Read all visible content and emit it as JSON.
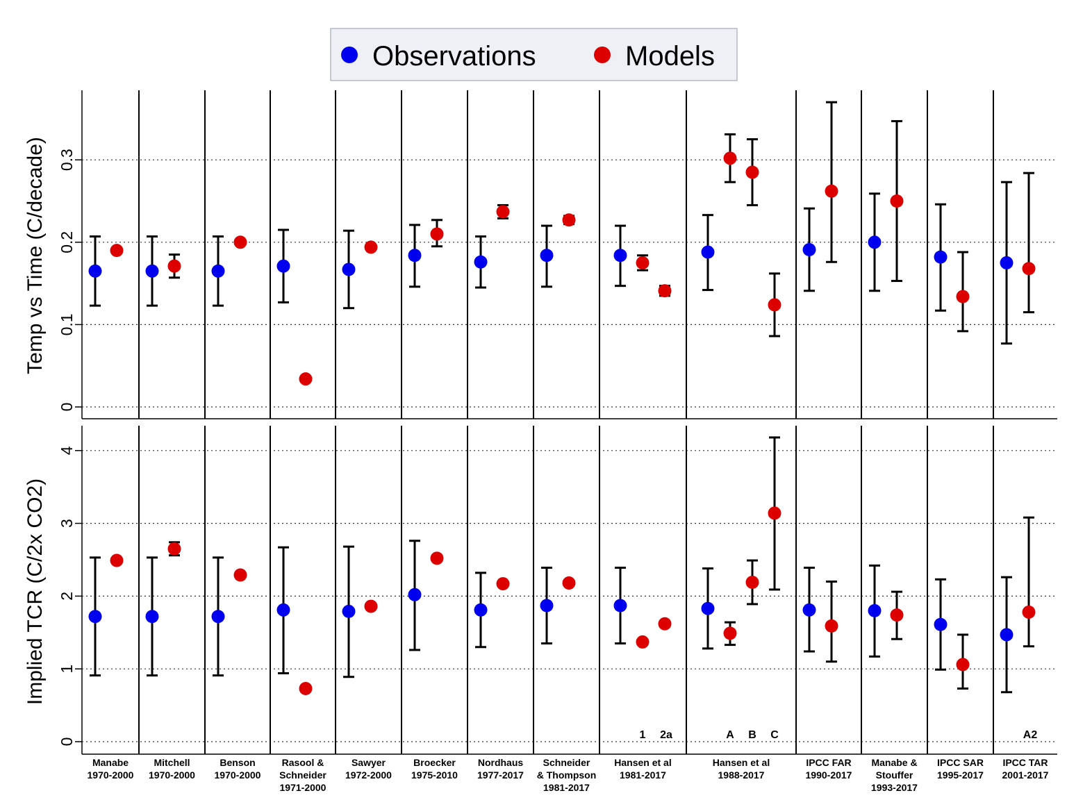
{
  "legend": [
    {
      "label": "Observations",
      "color": "#0000ee"
    },
    {
      "label": "Models",
      "color": "#dd0000"
    }
  ],
  "chart_data": [
    {
      "type": "scatter",
      "ylabel": "Temp vs Time (C/decade)",
      "ylim": [
        0,
        0.38
      ],
      "yticks": [
        0,
        0.1,
        0.2,
        0.3
      ],
      "ytick_labels": [
        "0",
        "0.1",
        "0.2",
        "0.3"
      ],
      "grid": "horizontal dotted",
      "categories": [
        "Manabe 1970-2000",
        "Mitchell 1970-2000",
        "Benson 1970-2000",
        "Rasool & Schneider 1971-2000",
        "Sawyer 1972-2000",
        "Broecker 1975-2010",
        "Nordhaus 1977-2017",
        "Schneider & Thompson 1981-2017",
        "Hansen et al 1981-2017",
        "Hansen et al 1988-2017",
        "IPCC FAR 1990-2017",
        "Manabe & Stouffer 1993-2017",
        "IPCC SAR 1995-2017",
        "IPCC TAR 2001-2017"
      ],
      "series": [
        {
          "name": "Observations",
          "color": "#0000ee",
          "points": [
            {
              "group": 0,
              "slot": 0,
              "y": 0.165,
              "lo": 0.123,
              "hi": 0.207
            },
            {
              "group": 1,
              "slot": 0,
              "y": 0.165,
              "lo": 0.123,
              "hi": 0.207
            },
            {
              "group": 2,
              "slot": 0,
              "y": 0.165,
              "lo": 0.123,
              "hi": 0.207
            },
            {
              "group": 3,
              "slot": 0,
              "y": 0.171,
              "lo": 0.127,
              "hi": 0.215
            },
            {
              "group": 4,
              "slot": 0,
              "y": 0.167,
              "lo": 0.12,
              "hi": 0.214
            },
            {
              "group": 5,
              "slot": 0,
              "y": 0.184,
              "lo": 0.146,
              "hi": 0.221
            },
            {
              "group": 6,
              "slot": 0,
              "y": 0.176,
              "lo": 0.145,
              "hi": 0.207
            },
            {
              "group": 7,
              "slot": 0,
              "y": 0.184,
              "lo": 0.146,
              "hi": 0.22
            },
            {
              "group": 8,
              "slot": 0,
              "y": 0.184,
              "lo": 0.147,
              "hi": 0.22
            },
            {
              "group": 9,
              "slot": 0,
              "y": 0.188,
              "lo": 0.142,
              "hi": 0.233
            },
            {
              "group": 10,
              "slot": 0,
              "y": 0.191,
              "lo": 0.141,
              "hi": 0.241
            },
            {
              "group": 11,
              "slot": 0,
              "y": 0.2,
              "lo": 0.141,
              "hi": 0.259
            },
            {
              "group": 12,
              "slot": 0,
              "y": 0.182,
              "lo": 0.117,
              "hi": 0.246
            },
            {
              "group": 13,
              "slot": 0,
              "y": 0.175,
              "lo": 0.077,
              "hi": 0.273
            }
          ]
        },
        {
          "name": "Models",
          "color": "#dd0000",
          "points": [
            {
              "group": 0,
              "slot": 1,
              "y": 0.19
            },
            {
              "group": 1,
              "slot": 1,
              "y": 0.171,
              "lo": 0.157,
              "hi": 0.185
            },
            {
              "group": 2,
              "slot": 1,
              "y": 0.2
            },
            {
              "group": 3,
              "slot": 1,
              "y": 0.034
            },
            {
              "group": 4,
              "slot": 1,
              "y": 0.194
            },
            {
              "group": 5,
              "slot": 1,
              "y": 0.21,
              "lo": 0.195,
              "hi": 0.227
            },
            {
              "group": 6,
              "slot": 1,
              "y": 0.237,
              "lo": 0.229,
              "hi": 0.245
            },
            {
              "group": 7,
              "slot": 1,
              "y": 0.227,
              "lo": 0.222,
              "hi": 0.232
            },
            {
              "group": 8,
              "slot": 1,
              "y": 0.175,
              "lo": 0.166,
              "hi": 0.184
            },
            {
              "group": 8,
              "slot": 2,
              "y": 0.141,
              "lo": 0.135,
              "hi": 0.147
            },
            {
              "group": 9,
              "slot": 1,
              "y": 0.302,
              "lo": 0.273,
              "hi": 0.331
            },
            {
              "group": 9,
              "slot": 2,
              "y": 0.285,
              "lo": 0.245,
              "hi": 0.325
            },
            {
              "group": 9,
              "slot": 3,
              "y": 0.124,
              "lo": 0.086,
              "hi": 0.162
            },
            {
              "group": 10,
              "slot": 1,
              "y": 0.262,
              "lo": 0.176,
              "hi": 0.37
            },
            {
              "group": 11,
              "slot": 1,
              "y": 0.25,
              "lo": 0.153,
              "hi": 0.347
            },
            {
              "group": 12,
              "slot": 1,
              "y": 0.134,
              "lo": 0.092,
              "hi": 0.188
            },
            {
              "group": 13,
              "slot": 1,
              "y": 0.168,
              "lo": 0.115,
              "hi": 0.284
            }
          ]
        }
      ]
    },
    {
      "type": "scatter",
      "ylabel": "Implied TCR (C/2x CO2)",
      "ylim": [
        0,
        4.4
      ],
      "yticks": [
        0,
        1,
        2,
        3,
        4
      ],
      "ytick_labels": [
        "0",
        "1",
        "2",
        "3",
        "4"
      ],
      "grid": "horizontal dotted",
      "categories": [
        "Manabe 1970-2000",
        "Mitchell 1970-2000",
        "Benson 1970-2000",
        "Rasool & Schneider 1971-2000",
        "Sawyer 1972-2000",
        "Broecker 1975-2010",
        "Nordhaus 1977-2017",
        "Schneider & Thompson 1981-2017",
        "Hansen et al 1981-2017",
        "Hansen et al 1988-2017",
        "IPCC FAR 1990-2017",
        "Manabe & Stouffer 1993-2017",
        "IPCC SAR 1995-2017",
        "IPCC TAR 2001-2017"
      ],
      "series": [
        {
          "name": "Observations",
          "color": "#0000ee",
          "points": [
            {
              "group": 0,
              "slot": 0,
              "y": 1.72,
              "lo": 0.91,
              "hi": 2.53
            },
            {
              "group": 1,
              "slot": 0,
              "y": 1.72,
              "lo": 0.91,
              "hi": 2.53
            },
            {
              "group": 2,
              "slot": 0,
              "y": 1.72,
              "lo": 0.91,
              "hi": 2.53
            },
            {
              "group": 3,
              "slot": 0,
              "y": 1.81,
              "lo": 0.94,
              "hi": 2.67
            },
            {
              "group": 4,
              "slot": 0,
              "y": 1.79,
              "lo": 0.89,
              "hi": 2.68
            },
            {
              "group": 5,
              "slot": 0,
              "y": 2.02,
              "lo": 1.26,
              "hi": 2.76
            },
            {
              "group": 6,
              "slot": 0,
              "y": 1.81,
              "lo": 1.3,
              "hi": 2.32
            },
            {
              "group": 7,
              "slot": 0,
              "y": 1.87,
              "lo": 1.35,
              "hi": 2.39
            },
            {
              "group": 8,
              "slot": 0,
              "y": 1.87,
              "lo": 1.35,
              "hi": 2.39
            },
            {
              "group": 9,
              "slot": 0,
              "y": 1.83,
              "lo": 1.28,
              "hi": 2.38
            },
            {
              "group": 10,
              "slot": 0,
              "y": 1.81,
              "lo": 1.24,
              "hi": 2.39
            },
            {
              "group": 11,
              "slot": 0,
              "y": 1.8,
              "lo": 1.17,
              "hi": 2.42
            },
            {
              "group": 12,
              "slot": 0,
              "y": 1.61,
              "lo": 0.99,
              "hi": 2.23
            },
            {
              "group": 13,
              "slot": 0,
              "y": 1.47,
              "lo": 0.68,
              "hi": 2.26
            }
          ]
        },
        {
          "name": "Models",
          "color": "#dd0000",
          "points": [
            {
              "group": 0,
              "slot": 1,
              "y": 2.49
            },
            {
              "group": 1,
              "slot": 1,
              "y": 2.65,
              "lo": 2.56,
              "hi": 2.74
            },
            {
              "group": 2,
              "slot": 1,
              "y": 2.29
            },
            {
              "group": 3,
              "slot": 1,
              "y": 0.73
            },
            {
              "group": 4,
              "slot": 1,
              "y": 1.86
            },
            {
              "group": 5,
              "slot": 1,
              "y": 2.52
            },
            {
              "group": 6,
              "slot": 1,
              "y": 2.17
            },
            {
              "group": 7,
              "slot": 1,
              "y": 2.18
            },
            {
              "group": 8,
              "slot": 1,
              "y": 1.37
            },
            {
              "group": 8,
              "slot": 2,
              "y": 1.62
            },
            {
              "group": 9,
              "slot": 1,
              "y": 1.49,
              "lo": 1.33,
              "hi": 1.64
            },
            {
              "group": 9,
              "slot": 2,
              "y": 2.19,
              "lo": 1.89,
              "hi": 2.49
            },
            {
              "group": 9,
              "slot": 3,
              "y": 3.14,
              "lo": 2.09,
              "hi": 4.18
            },
            {
              "group": 10,
              "slot": 1,
              "y": 1.59,
              "lo": 1.1,
              "hi": 2.2
            },
            {
              "group": 11,
              "slot": 1,
              "y": 1.74,
              "lo": 1.41,
              "hi": 2.06
            },
            {
              "group": 12,
              "slot": 1,
              "y": 1.06,
              "lo": 0.73,
              "hi": 1.47
            },
            {
              "group": 13,
              "slot": 1,
              "y": 1.78,
              "lo": 1.31,
              "hi": 3.08
            }
          ]
        }
      ]
    }
  ],
  "group_labels": [
    [
      "Manabe",
      "1970-2000"
    ],
    [
      "Mitchell",
      "1970-2000"
    ],
    [
      "Benson",
      "1970-2000"
    ],
    [
      "Rasool &",
      "Schneider",
      "1971-2000"
    ],
    [
      "Sawyer",
      "1972-2000"
    ],
    [
      "Broecker",
      "1975-2010"
    ],
    [
      "Nordhaus",
      "1977-2017"
    ],
    [
      "Schneider",
      "& Thompson",
      "1981-2017"
    ],
    [
      "Hansen et al",
      "1981-2017"
    ],
    [
      "Hansen et al",
      "1988-2017"
    ],
    [
      "IPCC FAR",
      "1990-2017"
    ],
    [
      "Manabe &",
      "Stouffer",
      "1993-2017"
    ],
    [
      "IPCC SAR",
      "1995-2017"
    ],
    [
      "IPCC TAR",
      "2001-2017"
    ]
  ],
  "scenario_labels": [
    {
      "group": 8,
      "slot": 1,
      "text": "1"
    },
    {
      "group": 8,
      "slot": 2,
      "text": "2a"
    },
    {
      "group": 9,
      "slot": 1,
      "text": "A"
    },
    {
      "group": 9,
      "slot": 2,
      "text": "B"
    },
    {
      "group": 9,
      "slot": 3,
      "text": "C"
    },
    {
      "group": 13,
      "slot": 1,
      "text": "A2"
    }
  ]
}
